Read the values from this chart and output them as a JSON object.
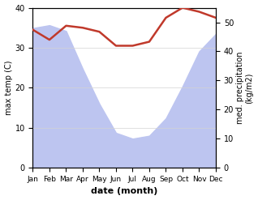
{
  "months": [
    "Jan",
    "Feb",
    "Mar",
    "Apr",
    "May",
    "Jun",
    "Jul",
    "Aug",
    "Sep",
    "Oct",
    "Nov",
    "Dec"
  ],
  "month_indices": [
    0,
    1,
    2,
    3,
    4,
    5,
    6,
    7,
    8,
    9,
    10,
    11
  ],
  "max_temp": [
    34.5,
    32.0,
    35.5,
    35.0,
    34.0,
    30.5,
    30.5,
    31.5,
    37.5,
    40.0,
    39.0,
    37.5
  ],
  "precipitation": [
    48.0,
    49.0,
    47.0,
    34.0,
    22.0,
    12.0,
    10.0,
    11.0,
    17.0,
    28.0,
    40.0,
    46.0
  ],
  "temp_color": "#c0392b",
  "precip_fill_color": "#bdc5f0",
  "xlabel": "date (month)",
  "ylabel_left": "max temp (C)",
  "ylabel_right": "med. precipitation\n(kg/m2)",
  "ylim_left": [
    0,
    40
  ],
  "ylim_right": [
    0,
    55
  ],
  "yticks_left": [
    0,
    10,
    20,
    30,
    40
  ],
  "yticks_right": [
    0,
    10,
    20,
    30,
    40,
    50
  ],
  "bg_color": "#ffffff"
}
